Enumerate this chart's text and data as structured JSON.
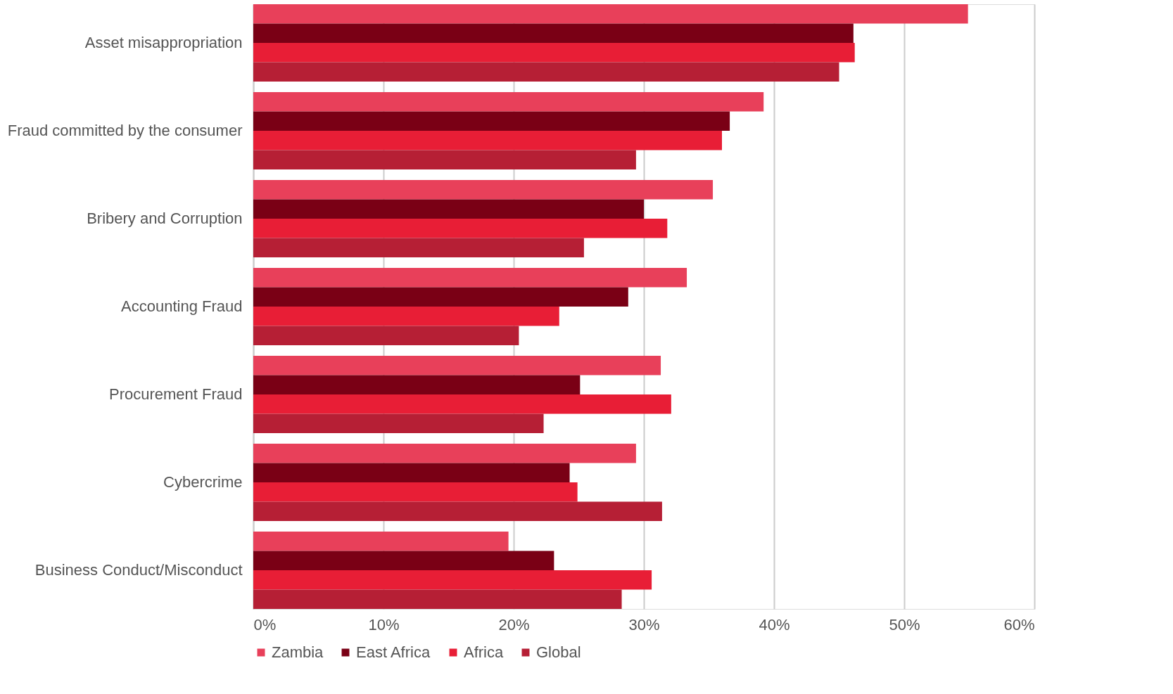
{
  "chart_data": {
    "type": "bar",
    "orientation": "horizontal",
    "categories": [
      "Asset misappropriation",
      "Fraud committed by the consumer",
      "Bribery and Corruption",
      "Accounting Fraud",
      "Procurement Fraud",
      "Cybercrime",
      "Business Conduct/Misconduct"
    ],
    "series": [
      {
        "name": "Zambia",
        "color": "#e8405a",
        "values": [
          54.9,
          39.2,
          35.3,
          33.3,
          31.3,
          29.4,
          19.6
        ]
      },
      {
        "name": "East Africa",
        "color": "#7a0015",
        "values": [
          46.1,
          36.6,
          30.0,
          28.8,
          25.1,
          24.3,
          23.1
        ]
      },
      {
        "name": "Africa",
        "color": "#e81e36",
        "values": [
          46.2,
          36.0,
          31.8,
          23.5,
          32.1,
          24.9,
          30.6
        ]
      },
      {
        "name": "Global",
        "color": "#b61f35",
        "values": [
          45.0,
          29.4,
          25.4,
          20.4,
          22.3,
          31.4,
          28.3
        ]
      }
    ],
    "xlim": [
      0,
      60
    ],
    "xticks": [
      {
        "value": 0,
        "label": "0%"
      },
      {
        "value": 10,
        "label": "10%"
      },
      {
        "value": 20,
        "label": "20%"
      },
      {
        "value": 30,
        "label": "30%"
      },
      {
        "value": 40,
        "label": "40%"
      },
      {
        "value": 50,
        "label": "50%"
      },
      {
        "value": 60,
        "label": "60%"
      }
    ],
    "grid": "x",
    "legend": "bottom"
  }
}
